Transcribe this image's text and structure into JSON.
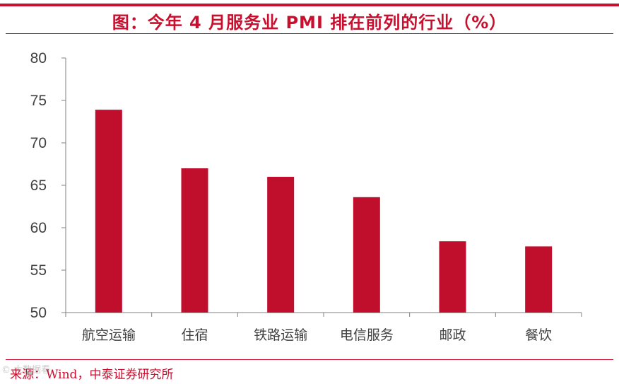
{
  "header": {
    "title": "图：今年 4 月服务业 PMI 排在前列的行业（%）"
  },
  "footer": {
    "source": "来源：Wind，中泰证券研究所",
    "watermark": "© 大数据看"
  },
  "colors": {
    "accent": "#c8102e",
    "bar": "#c00e2d",
    "axis": "#808080",
    "text": "#404040"
  },
  "chart_data": {
    "type": "bar",
    "categories": [
      "航空运输",
      "住宿",
      "铁路运输",
      "电信服务",
      "邮政",
      "餐饮"
    ],
    "values": [
      73.9,
      67.0,
      66.0,
      63.6,
      58.4,
      57.8
    ],
    "yticks": [
      50,
      55,
      60,
      65,
      70,
      75,
      80
    ],
    "ylim": [
      50,
      80
    ],
    "title": "图：今年 4 月服务业 PMI 排在前列的行业（%）",
    "xlabel": "",
    "ylabel": "",
    "grid": false,
    "legend": "none"
  }
}
